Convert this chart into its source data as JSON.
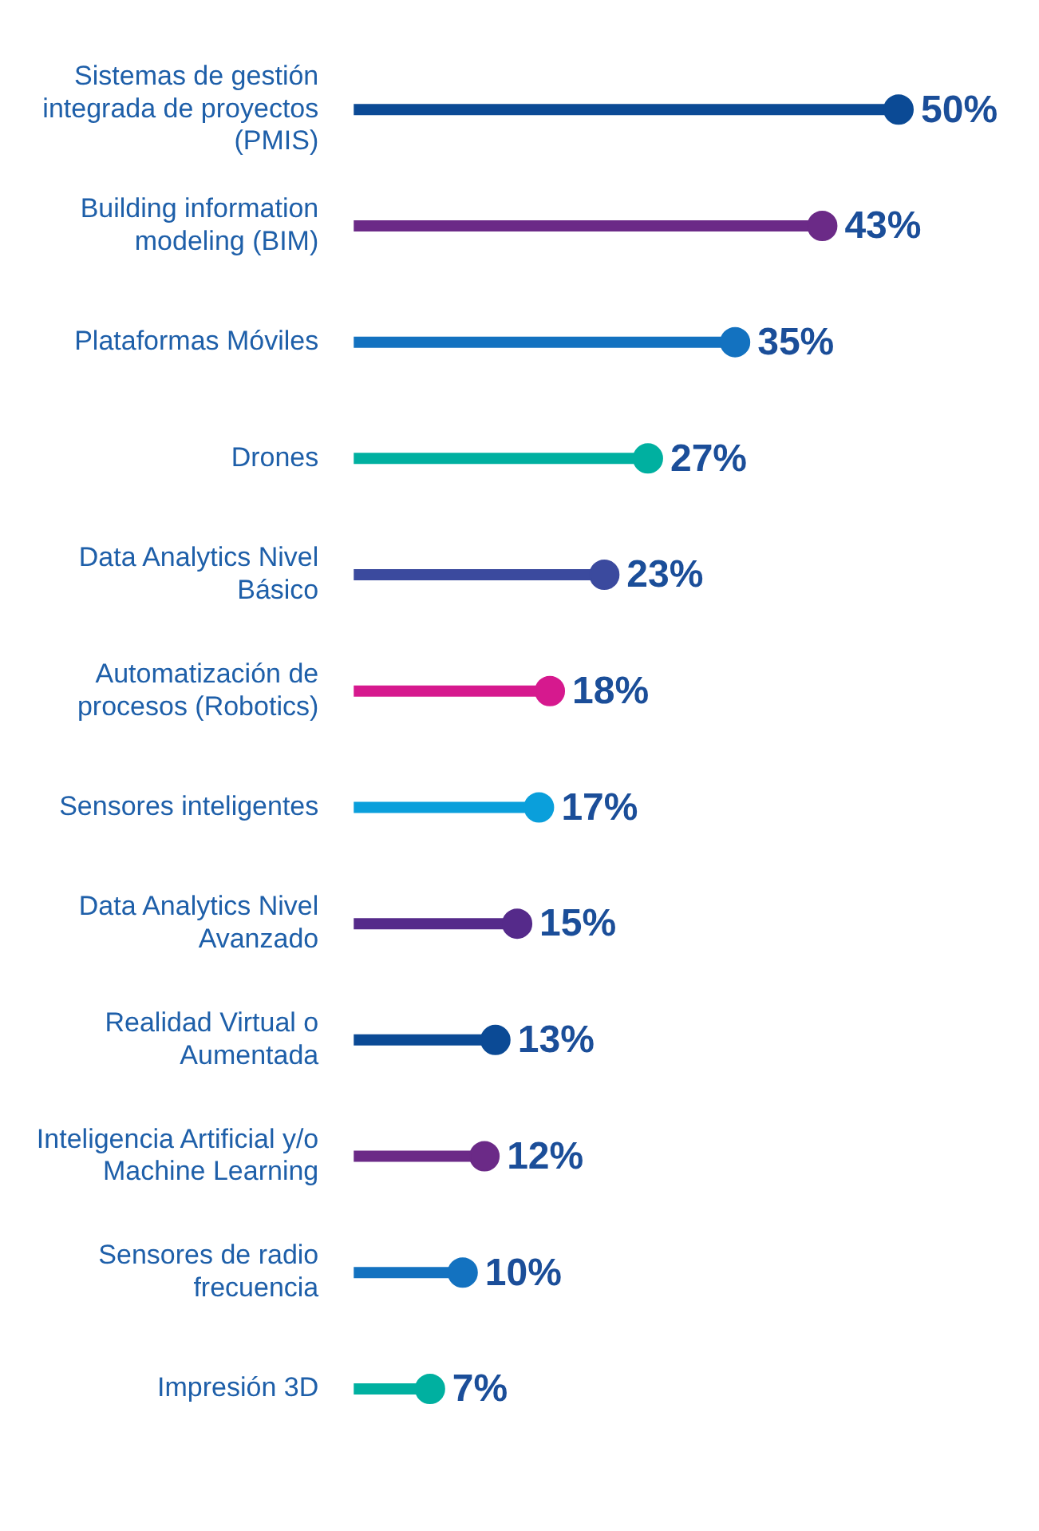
{
  "chart_data": {
    "type": "lollipop",
    "orientation": "horizontal",
    "categories": [
      "Sistemas de gestión integrada de proyectos (PMIS)",
      "Building information modeling (BIM)",
      "Plataformas Móviles",
      "Drones",
      "Data Analytics Nivel Básico",
      "Automatización de procesos (Robotics)",
      "Sensores inteligentes",
      "Data Analytics Nivel Avanzado",
      "Realidad Virtual o Aumentada",
      "Inteligencia Artificial y/o Machine Learning",
      "Sensores de radio frecuencia",
      "Impresión 3D"
    ],
    "values": [
      50,
      43,
      35,
      27,
      23,
      18,
      17,
      15,
      13,
      12,
      10,
      7
    ],
    "value_labels": [
      "50%",
      "43%",
      "35%",
      "27%",
      "23%",
      "18%",
      "17%",
      "15%",
      "13%",
      "12%",
      "10%",
      "7%"
    ],
    "colors": [
      "#0b4a95",
      "#6b2a87",
      "#1372c0",
      "#00b0a0",
      "#3b4a9e",
      "#d6198e",
      "#0a9fdb",
      "#552a8a",
      "#0b4a95",
      "#6b2a87",
      "#1372c0",
      "#00b0a0"
    ],
    "legend": false
  }
}
